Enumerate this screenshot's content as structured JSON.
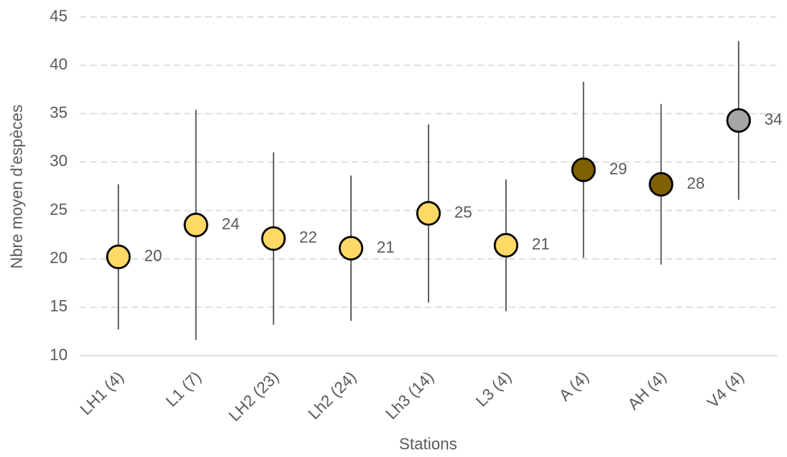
{
  "chart_data": {
    "type": "errorbar-scatter",
    "x_label": "Stations",
    "y_label": "Nbre moyen d'espèces",
    "categories": [
      "LH1 (4)",
      "L1 (7)",
      "LH2 (23)",
      "Lh2 (24)",
      "Lh3 (14)",
      "L3 (4)",
      "A (4)",
      "AH (4)",
      "V4 (4)"
    ],
    "values": [
      20.2,
      23.5,
      22.1,
      21.1,
      24.7,
      21.4,
      29.2,
      27.7,
      34.3
    ],
    "value_labels": [
      "20",
      "24",
      "22",
      "21",
      "25",
      "21",
      "29",
      "28",
      "34"
    ],
    "errors": [
      7.5,
      11.9,
      8.9,
      7.5,
      9.2,
      6.8,
      9.1,
      8.3,
      8.2
    ],
    "colors": [
      "#ffd966",
      "#ffd966",
      "#ffd966",
      "#ffd966",
      "#ffd966",
      "#ffd966",
      "#7f6000",
      "#7f6000",
      "#a6a6a6"
    ],
    "ylim": [
      10,
      45
    ],
    "yticks": [
      10,
      15,
      20,
      25,
      30,
      35,
      40,
      45
    ],
    "grid": true
  }
}
